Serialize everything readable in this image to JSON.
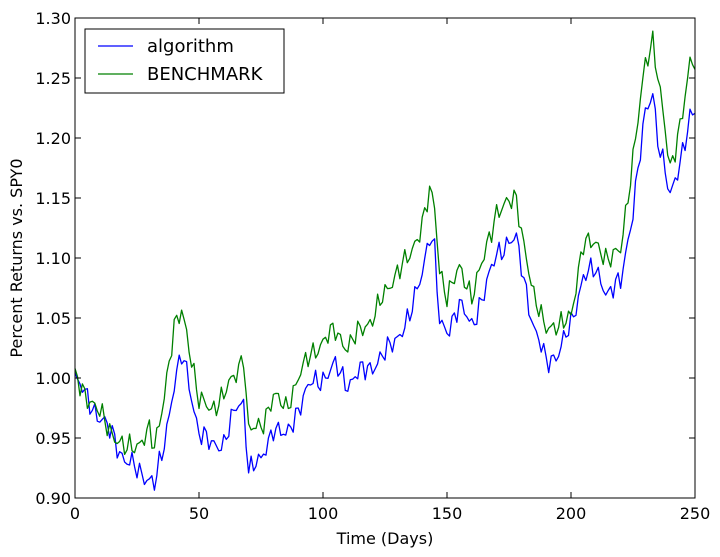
{
  "chart_data": {
    "type": "line",
    "title": "",
    "xlabel": "Time (Days)",
    "ylabel": "Percent Returns vs. SPY0",
    "xlim": [
      0,
      250
    ],
    "ylim": [
      0.9,
      1.3
    ],
    "xticks": [
      0,
      50,
      100,
      150,
      200,
      250
    ],
    "xtick_labels": [
      "0",
      "50",
      "100",
      "150",
      "200",
      "250"
    ],
    "yticks": [
      0.9,
      0.95,
      1.0,
      1.05,
      1.1,
      1.15,
      1.2,
      1.25,
      1.3
    ],
    "ytick_labels": [
      "0.90",
      "0.95",
      "1.00",
      "1.05",
      "1.10",
      "1.15",
      "1.20",
      "1.25",
      "1.30"
    ],
    "grid": false,
    "legend_position": "top-left",
    "x_sample_step": 5,
    "series": [
      {
        "name": "algorithm",
        "color": "#0000ff",
        "x": [
          0,
          5,
          10,
          15,
          20,
          25,
          30,
          32,
          35,
          40,
          43,
          45,
          50,
          55,
          60,
          65,
          68,
          70,
          75,
          80,
          85,
          90,
          95,
          100,
          105,
          110,
          115,
          120,
          125,
          130,
          135,
          140,
          143,
          145,
          147,
          150,
          155,
          160,
          165,
          170,
          175,
          178,
          180,
          185,
          190,
          195,
          200,
          205,
          210,
          215,
          220,
          225,
          230,
          233,
          235,
          240,
          245,
          248,
          250
        ],
        "y": [
          0.998,
          0.985,
          0.965,
          0.955,
          0.93,
          0.925,
          0.915,
          0.91,
          0.935,
          0.995,
          1.018,
          1.005,
          0.955,
          0.944,
          0.946,
          0.975,
          0.98,
          0.925,
          0.93,
          0.96,
          0.95,
          0.975,
          0.995,
          1.0,
          1.01,
          0.995,
          1.005,
          1.01,
          1.02,
          1.035,
          1.05,
          1.09,
          1.12,
          1.105,
          1.045,
          1.04,
          1.06,
          1.045,
          1.07,
          1.105,
          1.112,
          1.115,
          1.095,
          1.04,
          1.015,
          1.02,
          1.045,
          1.085,
          1.09,
          1.07,
          1.08,
          1.14,
          1.22,
          1.24,
          1.2,
          1.15,
          1.19,
          1.215,
          1.22
        ]
      },
      {
        "name": "BENCHMARK",
        "color": "#008000",
        "x": [
          0,
          5,
          10,
          15,
          20,
          25,
          30,
          32,
          35,
          40,
          43,
          45,
          50,
          55,
          60,
          65,
          68,
          70,
          75,
          80,
          85,
          90,
          95,
          100,
          105,
          110,
          115,
          120,
          125,
          130,
          135,
          140,
          143,
          145,
          147,
          150,
          155,
          160,
          165,
          170,
          175,
          178,
          180,
          185,
          190,
          195,
          200,
          205,
          210,
          215,
          220,
          225,
          230,
          233,
          235,
          240,
          245,
          248,
          250
        ],
        "y": [
          1.0,
          0.985,
          0.97,
          0.955,
          0.94,
          0.945,
          0.955,
          0.94,
          0.975,
          1.04,
          1.055,
          1.04,
          0.98,
          0.975,
          0.985,
          1.005,
          1.02,
          0.955,
          0.96,
          0.985,
          0.975,
          1.0,
          1.02,
          1.03,
          1.04,
          1.025,
          1.04,
          1.05,
          1.07,
          1.09,
          1.1,
          1.13,
          1.155,
          1.14,
          1.09,
          1.07,
          1.09,
          1.07,
          1.1,
          1.14,
          1.145,
          1.15,
          1.125,
          1.065,
          1.045,
          1.04,
          1.055,
          1.11,
          1.115,
          1.095,
          1.11,
          1.18,
          1.265,
          1.282,
          1.25,
          1.175,
          1.22,
          1.26,
          1.265
        ]
      }
    ]
  }
}
